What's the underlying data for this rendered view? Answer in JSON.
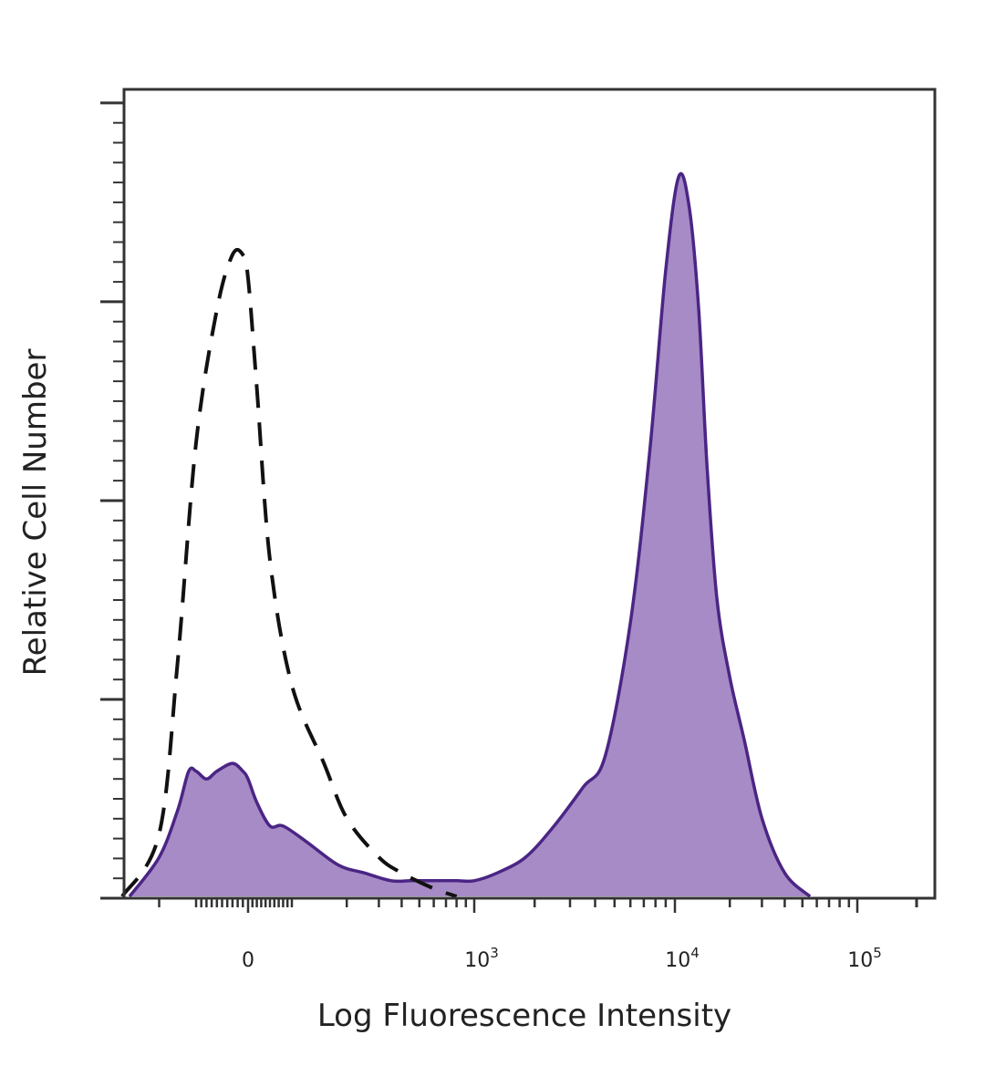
{
  "chart_data": {
    "type": "area",
    "title": "",
    "xlabel": "Log Fluorescence Intensity",
    "ylabel": "Relative Cell Number",
    "x_scale": "biexponential",
    "xlim": [
      -300,
      200000
    ],
    "ylim": [
      0,
      100
    ],
    "x_ticks": [
      {
        "value": 0,
        "label": "0"
      },
      {
        "value": 1000,
        "label": "10",
        "exponent": "3"
      },
      {
        "value": 10000,
        "label": "10",
        "exponent": "4"
      },
      {
        "value": 100000,
        "label": "10",
        "exponent": "5"
      }
    ],
    "y_ticks_labeled": false,
    "grid": false,
    "series": [
      {
        "style": "dashed",
        "color": "#111111",
        "filled": false,
        "x": [
          -300,
          -200,
          -150,
          -100,
          -60,
          -30,
          -10,
          0,
          20,
          50,
          100,
          150,
          200,
          300,
          400,
          600,
          800
        ],
        "y": [
          0,
          8,
          30,
          58,
          75,
          82,
          82,
          79,
          65,
          43,
          27,
          17,
          10,
          5,
          3,
          1,
          0
        ]
      },
      {
        "style": "solid",
        "color": "#4B2585",
        "fill": "#A68BC6",
        "filled": true,
        "x": [
          -280,
          -200,
          -150,
          -120,
          -100,
          -80,
          -60,
          -30,
          -10,
          0,
          20,
          50,
          80,
          120,
          180,
          250,
          350,
          450,
          600,
          800,
          1000,
          1300,
          1800,
          2500,
          3500,
          4500,
          6000,
          7500,
          9000,
          10500,
          12000,
          13500,
          15000,
          17000,
          20000,
          24000,
          30000,
          40000,
          55000
        ],
        "y": [
          0,
          5,
          11,
          16,
          16,
          15,
          16,
          17,
          16,
          15,
          12,
          9,
          9,
          7,
          4,
          3,
          2,
          2,
          2,
          2,
          2,
          3,
          5,
          9,
          14,
          18,
          35,
          57,
          80,
          92,
          88,
          75,
          55,
          38,
          28,
          20,
          10,
          3,
          0
        ]
      }
    ]
  }
}
